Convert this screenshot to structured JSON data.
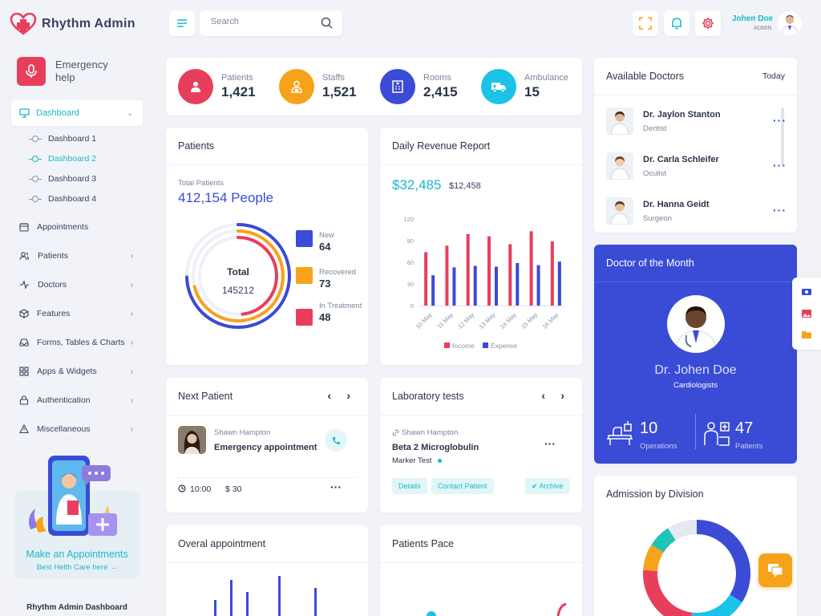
{
  "brand": {
    "name": "Rhythm Admin"
  },
  "emergency": {
    "label": "Emergency help"
  },
  "nav": {
    "dashboard": "Dashboard",
    "sub": [
      "Dashboard 1",
      "Dashboard 2",
      "Dashboard 3",
      "Dashboard 4"
    ],
    "items": [
      "Appointments",
      "Patients",
      "Doctors",
      "Features",
      "Forms, Tables & Charts",
      "Apps & Widgets",
      "Authentication",
      "Miscellaneous"
    ]
  },
  "promo": {
    "title": "Make an Appointments",
    "subtitle": "Best Helth Care here →"
  },
  "sidebar_footer": "Rhythm Admin Dashboard",
  "search": {
    "placeholder": "Search"
  },
  "user": {
    "name": "Johen Doe",
    "role": "ADMIN"
  },
  "stats": [
    {
      "label": "Patients",
      "value": "1,421",
      "color": "#e83e5c"
    },
    {
      "label": "Staffs",
      "value": "1,521",
      "color": "#f7a21b"
    },
    {
      "label": "Rooms",
      "value": "2,415",
      "color": "#3a4bd6"
    },
    {
      "label": "Ambulance",
      "value": "15",
      "color": "#1bc3e8"
    }
  ],
  "patients_card": {
    "title": "Patients",
    "total_label": "Total Patients",
    "total_value": "412,154 People",
    "center_label": "Total",
    "center_value": "145212",
    "legend": [
      {
        "label": "New",
        "value": "64",
        "color": "#3a4bd6"
      },
      {
        "label": "Recovered",
        "value": "73",
        "color": "#f7a21b"
      },
      {
        "label": "In Treatment",
        "value": "48",
        "color": "#e83e5c"
      }
    ]
  },
  "revenue": {
    "title": "Daily Revenue Report",
    "amount": "$32,485",
    "secondary": "$12,458"
  },
  "chart_data": {
    "type": "bar",
    "categories": [
      "10 May",
      "11 May",
      "12 May",
      "13 May",
      "14 May",
      "15 May",
      "16 May"
    ],
    "series": [
      {
        "name": "Income",
        "values": [
          74,
          83,
          99,
          96,
          85,
          103,
          89
        ],
        "color": "#e83e5c"
      },
      {
        "name": "Expense",
        "values": [
          42,
          53,
          55,
          54,
          59,
          56,
          61
        ],
        "color": "#3a4bd6"
      }
    ],
    "yticks": [
      0,
      30,
      60,
      90,
      120
    ],
    "ylim": [
      0,
      120
    ],
    "legend": "bottom"
  },
  "available_doctors": {
    "title": "Available Doctors",
    "filter": "Today",
    "doctors": [
      {
        "name": "Dr. Jaylon Stanton",
        "specialty": "Dentist"
      },
      {
        "name": "Dr. Carla Schleifer",
        "specialty": "Oculist"
      },
      {
        "name": "Dr. Hanna Geidt",
        "specialty": "Surgeon"
      }
    ]
  },
  "doctor_month": {
    "title": "Doctor of the Month",
    "name": "Dr. Johen Doe",
    "specialty": "Cardiologists",
    "operations_value": "10",
    "operations_label": "Operations",
    "patients_value": "47",
    "patients_label": "Patients"
  },
  "next_patient": {
    "title": "Next Patient",
    "name": "Shawn Hampton",
    "reason": "Emergency appointment",
    "time": "10:00",
    "fee": "$ 30"
  },
  "lab_tests": {
    "title": "Laboratory tests",
    "patient": "Shawn Hampton",
    "test": "Beta 2 Microglobulin",
    "sub": "Marker Test",
    "btn_details": "Details",
    "btn_contact": "Contact Patient",
    "btn_archive": "✔ Archive"
  },
  "overall_appointment": {
    "title": "Overal appointment",
    "bars": [
      20,
      45,
      30,
      50,
      35
    ]
  },
  "patients_pace": {
    "title": "Patients Pace"
  },
  "admission": {
    "title": "Admission by Division",
    "segments": [
      {
        "value": 34,
        "color": "#3a4bd6"
      },
      {
        "value": 18,
        "color": "#1bc3e8"
      },
      {
        "value": 24,
        "color": "#e83e5c"
      },
      {
        "value": 8,
        "color": "#f7a21b"
      },
      {
        "value": 7,
        "color": "#20c4b4"
      },
      {
        "value": 9,
        "color": "#e4e8f0"
      }
    ]
  }
}
